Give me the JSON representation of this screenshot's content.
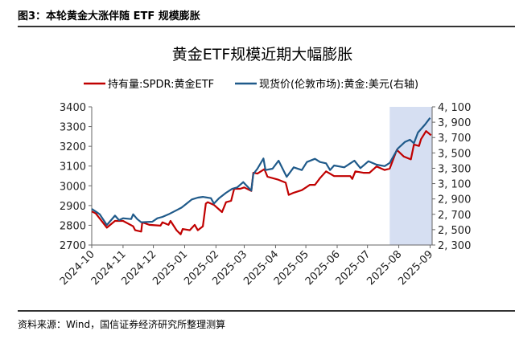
{
  "caption": "图3：本轮黄金大涨伴随 ETF 规模膨胀",
  "source": "资料来源：Wind，国信证券经济研究所整理测算",
  "chart_data": {
    "type": "line",
    "title": "黄金ETF规模近期大幅膨胀",
    "x_range": [
      "2024-10-01",
      "2025-09-03"
    ],
    "x_tick_labels": [
      "2024-10",
      "2024-11",
      "2024-12",
      "2025-01",
      "2025-02",
      "2025-03",
      "2025-04",
      "2025-05",
      "2025-06",
      "2025-07",
      "2025-08",
      "2025-09"
    ],
    "y_left": {
      "range": [
        2700,
        3400
      ],
      "ticks": [
        "2700",
        "2800",
        "2900",
        "3000",
        "3100",
        "3200",
        "3300",
        "3400"
      ]
    },
    "y_right": {
      "range": [
        2300,
        4100
      ],
      "ticks": [
        "2, 300",
        "2, 500",
        "2, 700",
        "2, 900",
        "3, 100",
        "3, 300",
        "3, 500",
        "3, 700",
        "3, 900",
        "4, 100"
      ]
    },
    "highlight": {
      "from": "2025-07-23",
      "to": "2025-09-03",
      "color": "#D6DFF2"
    },
    "legend_position": "top",
    "series": [
      {
        "name": "持有量:SPDR:黄金ETF",
        "axis": "left",
        "color": "#C00000",
        "points": [
          [
            "2024-10-01",
            2870
          ],
          [
            "2024-10-05",
            2860
          ],
          [
            "2024-10-16",
            2788
          ],
          [
            "2024-10-24",
            2822
          ],
          [
            "2024-11-01",
            2822
          ],
          [
            "2024-11-11",
            2795
          ],
          [
            "2024-11-13",
            2775
          ],
          [
            "2024-11-19",
            2768
          ],
          [
            "2024-11-20",
            2815
          ],
          [
            "2024-11-27",
            2802
          ],
          [
            "2024-12-08",
            2798
          ],
          [
            "2024-12-10",
            2815
          ],
          [
            "2024-12-16",
            2802
          ],
          [
            "2024-12-18",
            2822
          ],
          [
            "2024-12-24",
            2775
          ],
          [
            "2024-12-28",
            2754
          ],
          [
            "2024-12-30",
            2781
          ],
          [
            "2025-01-06",
            2775
          ],
          [
            "2025-01-11",
            2802
          ],
          [
            "2025-01-14",
            2775
          ],
          [
            "2025-01-19",
            2795
          ],
          [
            "2025-01-22",
            2910
          ],
          [
            "2025-01-24",
            2917
          ],
          [
            "2025-01-30",
            2903
          ],
          [
            "2025-02-07",
            2867
          ],
          [
            "2025-02-11",
            2917
          ],
          [
            "2025-02-16",
            2924
          ],
          [
            "2025-02-19",
            2985
          ],
          [
            "2025-02-25",
            2985
          ],
          [
            "2025-03-01",
            2992
          ],
          [
            "2025-03-08",
            2974
          ],
          [
            "2025-03-10",
            3066
          ],
          [
            "2025-03-14",
            3062
          ],
          [
            "2025-03-21",
            3084
          ],
          [
            "2025-03-24",
            3046
          ],
          [
            "2025-04-03",
            3032
          ],
          [
            "2025-04-11",
            3016
          ],
          [
            "2025-04-14",
            2954
          ],
          [
            "2025-04-19",
            2965
          ],
          [
            "2025-04-27",
            2978
          ],
          [
            "2025-05-05",
            3005
          ],
          [
            "2025-05-10",
            3005
          ],
          [
            "2025-05-15",
            3039
          ],
          [
            "2025-05-21",
            3073
          ],
          [
            "2025-05-29",
            3049
          ],
          [
            "2025-06-06",
            3049
          ],
          [
            "2025-06-14",
            3049
          ],
          [
            "2025-06-16",
            3035
          ],
          [
            "2025-06-19",
            3073
          ],
          [
            "2025-06-27",
            3066
          ],
          [
            "2025-07-03",
            3066
          ],
          [
            "2025-07-10",
            3098
          ],
          [
            "2025-07-18",
            3080
          ],
          [
            "2025-07-23",
            3087
          ],
          [
            "2025-07-30",
            3182
          ],
          [
            "2025-08-06",
            3148
          ],
          [
            "2025-08-13",
            3134
          ],
          [
            "2025-08-16",
            3209
          ],
          [
            "2025-08-21",
            3202
          ],
          [
            "2025-08-23",
            3236
          ],
          [
            "2025-08-28",
            3277
          ],
          [
            "2025-09-02",
            3256
          ]
        ]
      },
      {
        "name": "现货价(伦敦市场):黄金:美元(右轴)",
        "axis": "right",
        "color": "#1F5A8A",
        "points": [
          [
            "2024-10-01",
            2770
          ],
          [
            "2024-10-05",
            2736
          ],
          [
            "2024-10-09",
            2700
          ],
          [
            "2024-10-16",
            2561
          ],
          [
            "2024-10-24",
            2683
          ],
          [
            "2024-10-28",
            2624
          ],
          [
            "2024-11-01",
            2648
          ],
          [
            "2024-11-09",
            2638
          ],
          [
            "2024-11-11",
            2700
          ],
          [
            "2024-11-15",
            2638
          ],
          [
            "2024-11-19",
            2596
          ],
          [
            "2024-11-30",
            2603
          ],
          [
            "2024-12-05",
            2648
          ],
          [
            "2024-12-10",
            2666
          ],
          [
            "2024-12-16",
            2700
          ],
          [
            "2024-12-24",
            2753
          ],
          [
            "2024-12-29",
            2788
          ],
          [
            "2025-01-03",
            2840
          ],
          [
            "2025-01-08",
            2893
          ],
          [
            "2025-01-14",
            2917
          ],
          [
            "2025-01-19",
            2927
          ],
          [
            "2025-01-27",
            2910
          ],
          [
            "2025-01-30",
            2840
          ],
          [
            "2025-02-04",
            2910
          ],
          [
            "2025-02-11",
            2980
          ],
          [
            "2025-02-17",
            3032
          ],
          [
            "2025-02-22",
            3050
          ],
          [
            "2025-02-28",
            3119
          ],
          [
            "2025-03-08",
            3008
          ],
          [
            "2025-03-10",
            3224
          ],
          [
            "2025-03-14",
            3294
          ],
          [
            "2025-03-20",
            3427
          ],
          [
            "2025-03-22",
            3276
          ],
          [
            "2025-03-29",
            3294
          ],
          [
            "2025-04-04",
            3399
          ],
          [
            "2025-04-12",
            3189
          ],
          [
            "2025-04-19",
            3312
          ],
          [
            "2025-04-27",
            3276
          ],
          [
            "2025-05-02",
            3381
          ],
          [
            "2025-05-10",
            3423
          ],
          [
            "2025-05-15",
            3381
          ],
          [
            "2025-05-21",
            3364
          ],
          [
            "2025-05-25",
            3276
          ],
          [
            "2025-05-29",
            3336
          ],
          [
            "2025-06-08",
            3312
          ],
          [
            "2025-06-18",
            3399
          ],
          [
            "2025-06-24",
            3301
          ],
          [
            "2025-07-02",
            3391
          ],
          [
            "2025-07-10",
            3346
          ],
          [
            "2025-07-18",
            3328
          ],
          [
            "2025-07-23",
            3370
          ],
          [
            "2025-07-31",
            3556
          ],
          [
            "2025-08-07",
            3642
          ],
          [
            "2025-08-12",
            3671
          ],
          [
            "2025-08-16",
            3626
          ],
          [
            "2025-08-20",
            3765
          ],
          [
            "2025-08-27",
            3870
          ],
          [
            "2025-09-01",
            3957
          ]
        ]
      }
    ]
  }
}
